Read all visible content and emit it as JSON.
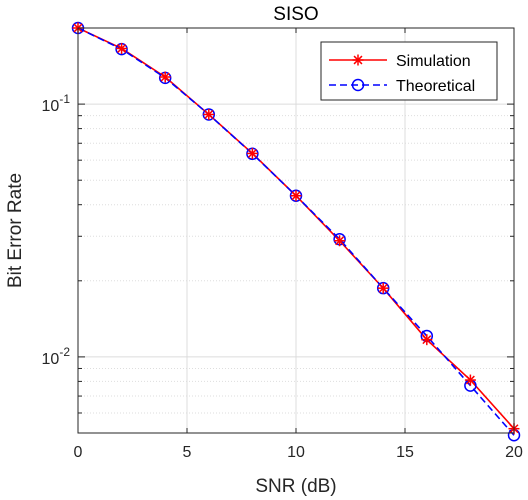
{
  "chart_data": {
    "type": "line",
    "title": "SISO",
    "xlabel": "SNR (dB)",
    "ylabel": "Bit Error Rate",
    "xlim": [
      0,
      20
    ],
    "ylim": [
      0.005,
      0.2
    ],
    "yscale": "log",
    "grid": true,
    "legend_position": "top-right",
    "x_ticks": [
      0,
      5,
      10,
      15,
      20
    ],
    "x_tick_labels": [
      "0",
      "5",
      "10",
      "15",
      "20"
    ],
    "y_ticks": [
      0.01,
      0.1
    ],
    "y_tick_labels": [
      {
        "base": "10",
        "exp": "-2"
      },
      {
        "base": "10",
        "exp": "-1"
      }
    ],
    "series": [
      {
        "name": "Simulation",
        "color": "#ff0000",
        "line_style": "solid",
        "marker": "asterisk",
        "x": [
          0,
          2,
          4,
          6,
          8,
          10,
          12,
          14,
          16,
          18,
          20
        ],
        "y": [
          0.2,
          0.166,
          0.128,
          0.091,
          0.0638,
          0.0434,
          0.0288,
          0.0187,
          0.0117,
          0.0081,
          0.0052
        ]
      },
      {
        "name": "Theoretical",
        "color": "#0000ff",
        "line_style": "dashed",
        "marker": "circle",
        "x": [
          0,
          2,
          4,
          6,
          8,
          10,
          12,
          14,
          16,
          18,
          20
        ],
        "y": [
          0.2,
          0.165,
          0.127,
          0.091,
          0.0636,
          0.0434,
          0.0292,
          0.0187,
          0.0121,
          0.0077,
          0.0049
        ]
      }
    ]
  }
}
